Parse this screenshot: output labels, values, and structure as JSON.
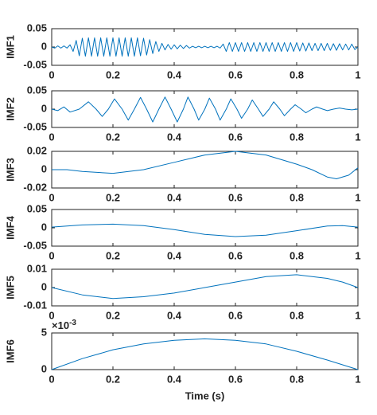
{
  "chart_data": [
    {
      "type": "line",
      "ylabel": "IMF1",
      "x": [
        0,
        0.01,
        0.02,
        0.03,
        0.04,
        0.05,
        0.06,
        0.07,
        0.08,
        0.09,
        0.1,
        0.11,
        0.12,
        0.13,
        0.14,
        0.15,
        0.16,
        0.17,
        0.18,
        0.19,
        0.2,
        0.21,
        0.22,
        0.23,
        0.24,
        0.25,
        0.26,
        0.27,
        0.28,
        0.29,
        0.3,
        0.31,
        0.32,
        0.33,
        0.34,
        0.35,
        0.36,
        0.37,
        0.38,
        0.39,
        0.4,
        0.41,
        0.42,
        0.43,
        0.44,
        0.45,
        0.46,
        0.47,
        0.48,
        0.49,
        0.5,
        0.51,
        0.52,
        0.53,
        0.54,
        0.55,
        0.56,
        0.57,
        0.58,
        0.59,
        0.6,
        0.61,
        0.62,
        0.63,
        0.64,
        0.65,
        0.66,
        0.67,
        0.68,
        0.69,
        0.7,
        0.71,
        0.72,
        0.73,
        0.74,
        0.75,
        0.76,
        0.77,
        0.78,
        0.79,
        0.8,
        0.81,
        0.82,
        0.83,
        0.84,
        0.85,
        0.86,
        0.87,
        0.88,
        0.89,
        0.9,
        0.91,
        0.92,
        0.93,
        0.94,
        0.95,
        0.96,
        0.97,
        0.98,
        0.99,
        1
      ],
      "series": [
        {
          "color": "#0072bd",
          "values": [
            0,
            -0.003,
            0.003,
            -0.003,
            0.003,
            -0.003,
            0.006,
            -0.012,
            0.018,
            -0.024,
            0.024,
            -0.025,
            0.025,
            -0.025,
            0.025,
            -0.025,
            0.025,
            -0.025,
            0.025,
            -0.025,
            0.025,
            -0.025,
            0.025,
            -0.025,
            0.025,
            -0.025,
            0.025,
            -0.025,
            0.025,
            -0.024,
            0.024,
            -0.022,
            0.02,
            -0.018,
            0.015,
            -0.012,
            0.01,
            -0.008,
            0.007,
            -0.006,
            0.006,
            -0.005,
            0.005,
            -0.004,
            0.004,
            -0.003,
            0.002,
            -0.002,
            0.002,
            -0.002,
            0.002,
            -0.002,
            0.002,
            -0.002,
            0.002,
            -0.003,
            0.008,
            -0.012,
            0.012,
            -0.012,
            0.012,
            -0.012,
            0.012,
            -0.012,
            0.012,
            -0.012,
            0.012,
            -0.012,
            0.012,
            -0.012,
            0.012,
            -0.012,
            0.012,
            -0.012,
            0.012,
            -0.012,
            0.012,
            -0.012,
            0.012,
            -0.012,
            0.012,
            -0.011,
            0.011,
            -0.011,
            0.011,
            -0.01,
            0.01,
            -0.01,
            0.01,
            -0.01,
            0.01,
            -0.009,
            0.009,
            -0.009,
            0.009,
            -0.008,
            0.008,
            -0.008,
            0.008,
            -0.007,
            0
          ]
        }
      ],
      "xlim": [
        0,
        1
      ],
      "xticks": [
        0,
        0.2,
        0.4,
        0.6,
        0.8,
        1
      ],
      "ylim": [
        -0.05,
        0.05
      ],
      "yticks": [
        -0.05,
        0,
        0.05
      ]
    },
    {
      "type": "line",
      "ylabel": "IMF2",
      "x": [
        0,
        0.02,
        0.04,
        0.06,
        0.09,
        0.12,
        0.145,
        0.165,
        0.185,
        0.205,
        0.23,
        0.25,
        0.27,
        0.29,
        0.31,
        0.33,
        0.35,
        0.37,
        0.39,
        0.41,
        0.43,
        0.445,
        0.465,
        0.48,
        0.5,
        0.515,
        0.535,
        0.55,
        0.57,
        0.585,
        0.605,
        0.62,
        0.64,
        0.655,
        0.675,
        0.69,
        0.71,
        0.725,
        0.745,
        0.76,
        0.78,
        0.795,
        0.815,
        0.83,
        0.85,
        0.865,
        0.885,
        0.9,
        0.92,
        0.94,
        0.96,
        0.98,
        1
      ],
      "series": [
        {
          "color": "#0072bd",
          "values": [
            0,
            -0.004,
            0.006,
            -0.008,
            0,
            0.02,
            0,
            -0.02,
            0,
            0.028,
            0,
            -0.03,
            0,
            0.032,
            0,
            -0.035,
            0,
            0.033,
            0,
            -0.035,
            0,
            0.033,
            0,
            -0.03,
            0,
            0.03,
            0,
            -0.03,
            0,
            0.028,
            0,
            -0.025,
            0,
            0.025,
            0,
            -0.02,
            0,
            0.02,
            0,
            -0.018,
            0,
            0.012,
            0,
            -0.01,
            0,
            0.006,
            0,
            -0.004,
            0,
            0.003,
            0,
            -0.002,
            0
          ]
        }
      ],
      "xlim": [
        0,
        1
      ],
      "xticks": [
        0,
        0.2,
        0.4,
        0.6,
        0.8,
        1
      ],
      "ylim": [
        -0.05,
        0.05
      ],
      "yticks": [
        -0.05,
        0,
        0.05
      ]
    },
    {
      "type": "line",
      "ylabel": "IMF3",
      "x": [
        0,
        0.05,
        0.1,
        0.2,
        0.3,
        0.4,
        0.5,
        0.6,
        0.7,
        0.8,
        0.85,
        0.9,
        0.93,
        0.97,
        1
      ],
      "series": [
        {
          "color": "#0072bd",
          "values": [
            0,
            0,
            -0.002,
            -0.004,
            0,
            0.008,
            0.016,
            0.02,
            0.016,
            0.006,
            0,
            -0.008,
            -0.01,
            -0.006,
            0.002
          ]
        }
      ],
      "xlim": [
        0,
        1
      ],
      "xticks": [
        0,
        0.2,
        0.4,
        0.6,
        0.8,
        1
      ],
      "ylim": [
        -0.02,
        0.02
      ],
      "yticks": [
        -0.02,
        0,
        0.02
      ]
    },
    {
      "type": "line",
      "ylabel": "IMF4",
      "x": [
        0,
        0.1,
        0.2,
        0.3,
        0.4,
        0.5,
        0.6,
        0.7,
        0.8,
        0.9,
        0.95,
        1
      ],
      "series": [
        {
          "color": "#0072bd",
          "values": [
            0.002,
            0.008,
            0.01,
            0.006,
            -0.005,
            -0.018,
            -0.024,
            -0.02,
            -0.008,
            0.005,
            0.006,
            0.002
          ]
        }
      ],
      "xlim": [
        0,
        1
      ],
      "xticks": [
        0,
        0.2,
        0.4,
        0.6,
        0.8,
        1
      ],
      "ylim": [
        -0.05,
        0.05
      ],
      "yticks": [
        -0.05,
        0,
        0.05
      ]
    },
    {
      "type": "line",
      "ylabel": "IMF5",
      "x": [
        0,
        0.1,
        0.2,
        0.3,
        0.4,
        0.5,
        0.6,
        0.7,
        0.8,
        0.9,
        0.95,
        1
      ],
      "series": [
        {
          "color": "#0072bd",
          "values": [
            0,
            -0.004,
            -0.006,
            -0.005,
            -0.003,
            0,
            0.003,
            0.006,
            0.007,
            0.005,
            0.003,
            0
          ]
        }
      ],
      "xlim": [
        0,
        1
      ],
      "xticks": [
        0,
        0.2,
        0.4,
        0.6,
        0.8,
        1
      ],
      "ylim": [
        -0.01,
        0.01
      ],
      "yticks": [
        -0.01,
        0,
        0.01
      ]
    },
    {
      "type": "line",
      "ylabel": "IMF6",
      "xlabel": "Time (s)",
      "exponent_base": "×10",
      "exponent_power": "-3",
      "x": [
        0,
        0.1,
        0.2,
        0.3,
        0.4,
        0.5,
        0.6,
        0.7,
        0.8,
        0.9,
        1
      ],
      "series": [
        {
          "color": "#0072bd",
          "values": [
            0,
            0.0015,
            0.0027,
            0.0035,
            0.004,
            0.0042,
            0.004,
            0.0035,
            0.0025,
            0.0013,
            0
          ]
        }
      ],
      "xlim": [
        0,
        1
      ],
      "xticks": [
        0,
        0.2,
        0.4,
        0.6,
        0.8,
        1
      ],
      "ylim": [
        0,
        0.005
      ],
      "yticks": [
        0,
        {
          "value": 0.005,
          "label": "5"
        }
      ]
    }
  ]
}
